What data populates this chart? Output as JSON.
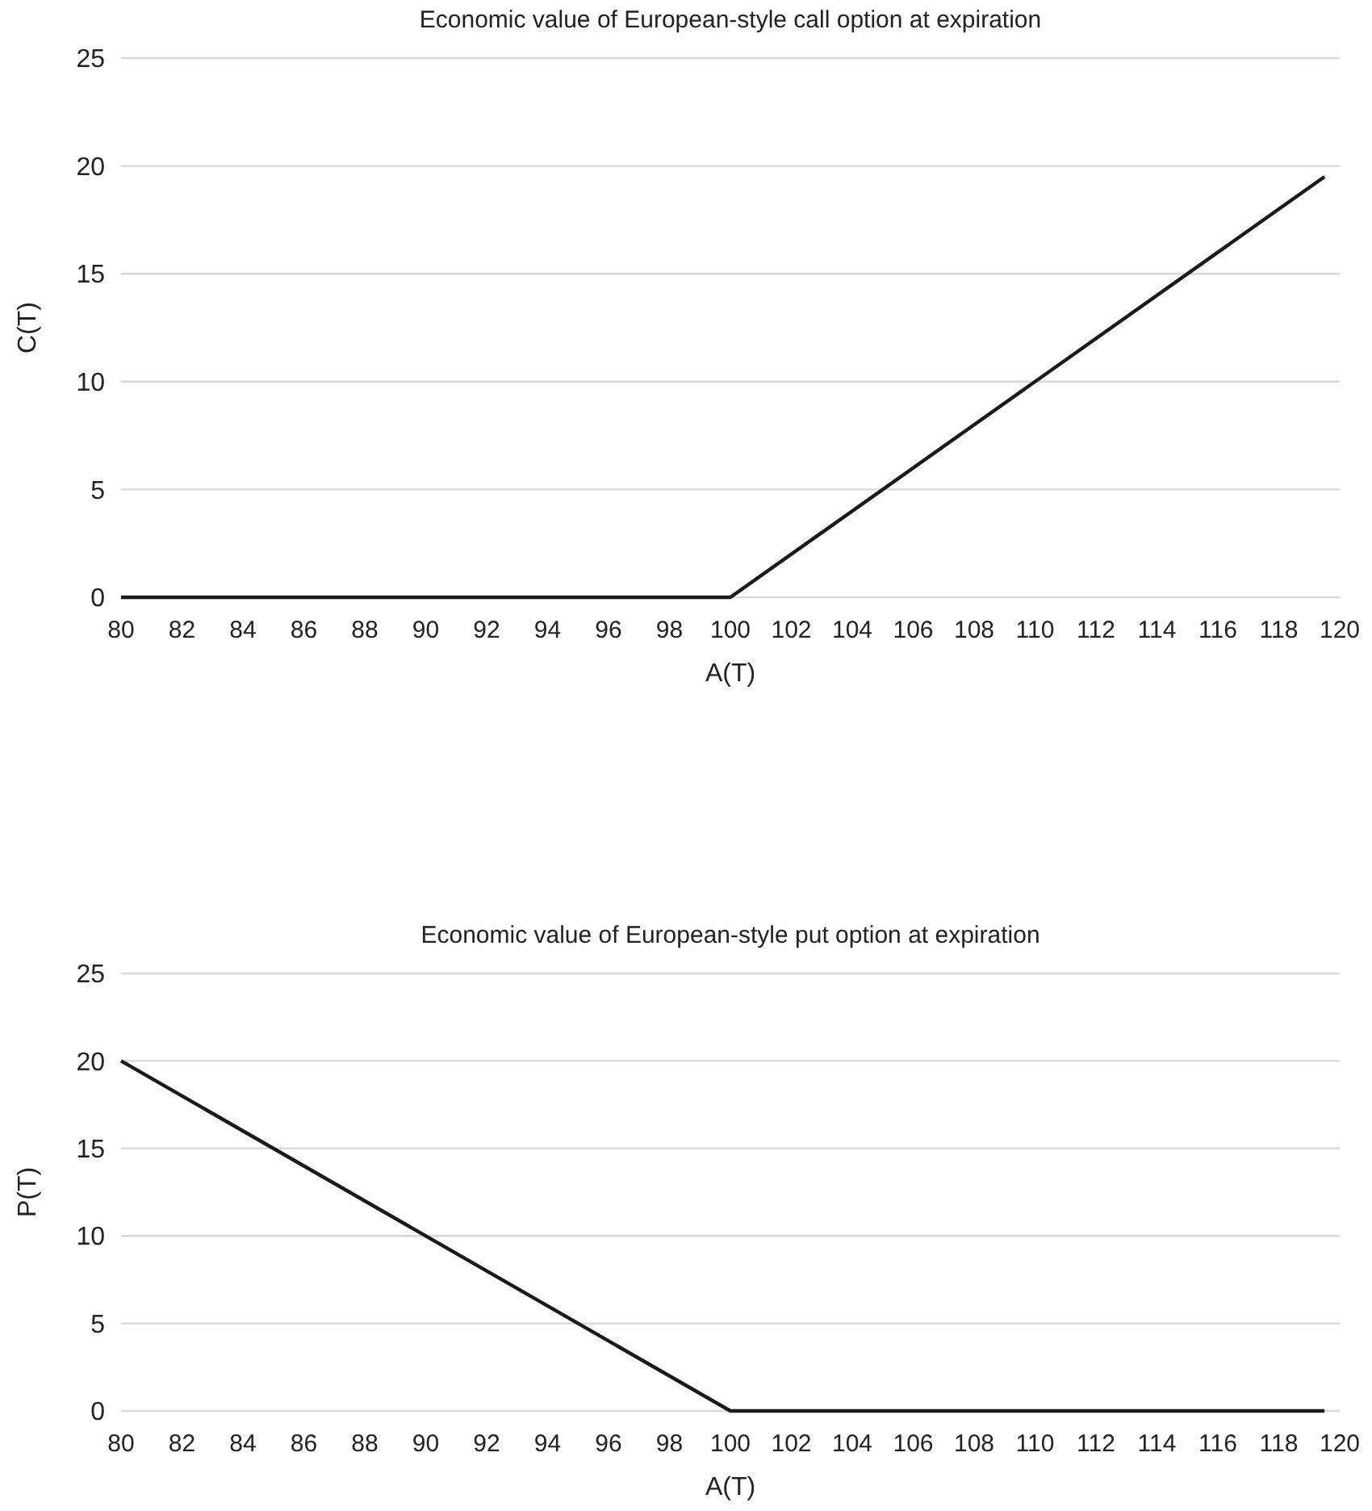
{
  "chart_data": [
    {
      "type": "line",
      "title": "Economic value of European-style call option at expiration",
      "xlabel": "A(T)",
      "ylabel": "C(T)",
      "x": [
        80,
        100,
        119.5
      ],
      "series": [
        {
          "color": "#1a1a1a",
          "values": [
            0,
            0,
            19.5
          ]
        }
      ],
      "xlim": [
        80,
        120
      ],
      "xticks": [
        80,
        82,
        84,
        86,
        88,
        90,
        92,
        94,
        96,
        98,
        100,
        102,
        104,
        106,
        108,
        110,
        112,
        114,
        116,
        118,
        120
      ],
      "ylim": [
        0,
        25
      ],
      "yticks": [
        0,
        5,
        10,
        15,
        20,
        25
      ],
      "grid": "y"
    },
    {
      "type": "line",
      "title": "Economic value of European-style put option at expiration",
      "xlabel": "A(T)",
      "ylabel": "P(T)",
      "x": [
        80,
        100,
        119.5
      ],
      "series": [
        {
          "color": "#1a1a1a",
          "values": [
            20,
            0,
            0
          ]
        }
      ],
      "xlim": [
        80,
        120
      ],
      "xticks": [
        80,
        82,
        84,
        86,
        88,
        90,
        92,
        94,
        96,
        98,
        100,
        102,
        104,
        106,
        108,
        110,
        112,
        114,
        116,
        118,
        120
      ],
      "ylim": [
        0,
        25
      ],
      "yticks": [
        0,
        5,
        10,
        15,
        20,
        25
      ],
      "grid": "y"
    }
  ]
}
